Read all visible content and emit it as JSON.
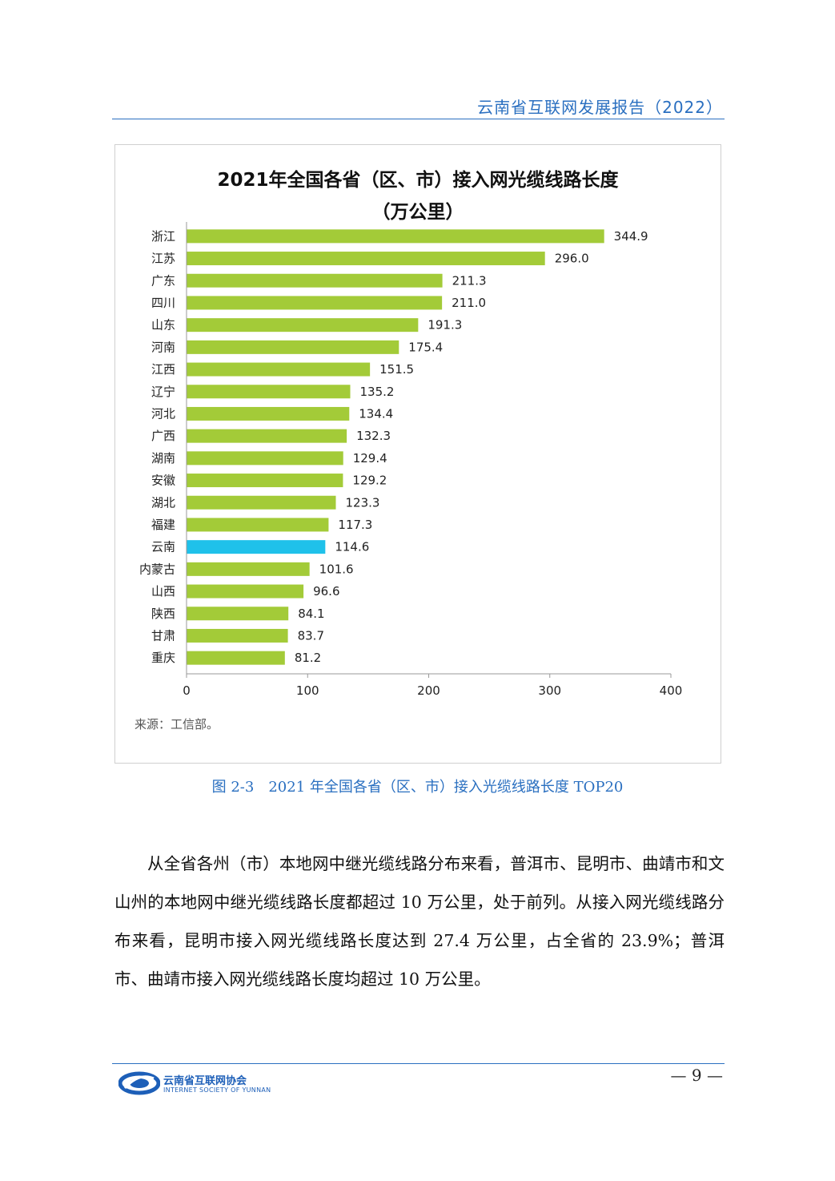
{
  "header": {
    "report_title": "云南省互联网发展报告（2022）"
  },
  "chart": {
    "title_line1": "2021年全国各省（区、市）接入网光缆线路长度",
    "title_line2": "（万公里）",
    "source": "来源：工信部。"
  },
  "chart_data": {
    "type": "bar",
    "orientation": "horizontal",
    "title": "2021年全国各省（区、市）接入网光缆线路长度（万公里）",
    "categories": [
      "浙江",
      "江苏",
      "广东",
      "四川",
      "山东",
      "河南",
      "江西",
      "辽宁",
      "河北",
      "广西",
      "湖南",
      "安徽",
      "湖北",
      "福建",
      "云南",
      "内蒙古",
      "山西",
      "陕西",
      "甘肃",
      "重庆"
    ],
    "values": [
      344.9,
      296.0,
      211.3,
      211.0,
      191.3,
      175.4,
      151.5,
      135.2,
      134.4,
      132.3,
      129.4,
      129.2,
      123.3,
      117.3,
      114.6,
      101.6,
      96.6,
      84.1,
      83.7,
      81.2
    ],
    "value_labels": [
      "344.9",
      "296.0",
      "211.3",
      "211.0",
      "191.3",
      "175.4",
      "151.5",
      "135.2",
      "134.4",
      "132.3",
      "129.4",
      "129.2",
      "123.3",
      "117.3",
      "114.6",
      "101.6",
      "96.6",
      "84.1",
      "83.7",
      "81.2"
    ],
    "xlim": [
      0,
      400
    ],
    "xticks": [
      "0",
      "100",
      "200",
      "300",
      "400"
    ],
    "bar_color": "#a3cb38",
    "highlight_category": "云南",
    "highlight_color": "#1fc1ea",
    "xlabel": "",
    "ylabel": ""
  },
  "caption": "图 2-3　2021 年全国各省（区、市）接入光缆线路长度 TOP20",
  "body": {
    "paragraph1": "从全省各州（市）本地网中继光缆线路分布来看，普洱市、昆明市、曲靖市和文山州的本地网中继光缆线路长度都超过 10 万公里，处于前列。从接入网光缆线路分布来看，昆明市接入网光缆线路长度达到 27.4 万公里，占全省的 23.9%；普洱市、曲靖市接入网光缆线路长度均超过 10 万公里。"
  },
  "footer": {
    "org_name": "云南省互联网协会",
    "org_name_en": "INTERNET SOCIETY OF YUNNAN",
    "page_number": "— 9 —"
  },
  "colors": {
    "accent": "#2a6fc0"
  }
}
